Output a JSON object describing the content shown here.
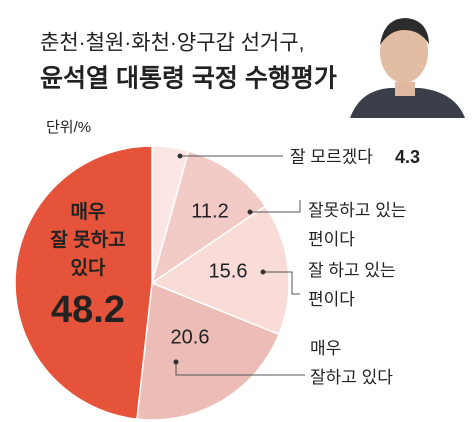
{
  "chart_data": {
    "type": "pie",
    "subtitle": "춘천·철원·화천·양구갑 선거구,",
    "title": "윤석열 대통령 국정 수행평가",
    "unit": "단위/%",
    "categories": [
      "잘 모르겠다",
      "잘못하고 있는\n편이다",
      "잘 하고 있는\n편이다",
      "매우\n잘하고 있다",
      "매우\n잘 못하고\n있다"
    ],
    "values": [
      4.3,
      11.2,
      15.6,
      20.6,
      48.2
    ],
    "colors": [
      "#fbe6e3",
      "#f3cbc6",
      "#f9dcd8",
      "#ecbcb6",
      "#e5533a"
    ]
  }
}
